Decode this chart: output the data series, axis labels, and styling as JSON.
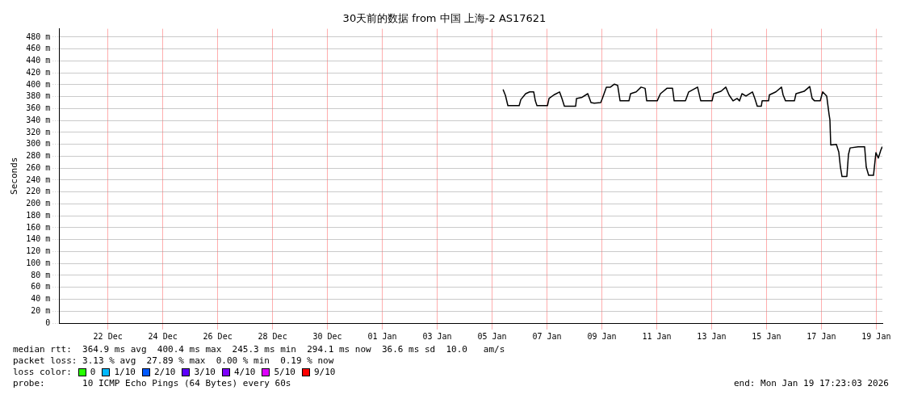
{
  "chart_data": {
    "type": "line",
    "title": "30天前的数据 from 中国 上海-2 AS17621",
    "ylabel": "Seconds",
    "x": [
      "2026-01-05T21:36",
      "2026-01-05T23:43",
      "2026-01-06T01:50",
      "2026-01-06T11:43",
      "2026-01-06T13:08",
      "2026-01-06T17:22",
      "2026-01-06T20:54",
      "2026-01-07T00:26",
      "2026-01-07T01:50",
      "2026-01-07T03:15",
      "2026-01-07T12:26",
      "2026-01-07T13:50",
      "2026-01-07T18:04",
      "2026-01-07T23:01",
      "2026-01-08T01:08",
      "2026-01-08T03:15",
      "2026-01-08T13:08",
      "2026-01-08T13:50",
      "2026-01-08T18:46",
      "2026-01-08T23:43",
      "2026-01-09T02:32",
      "2026-01-09T05:22",
      "2026-01-09T11:01",
      "2026-01-09T12:26",
      "2026-01-09T15:58",
      "2026-01-09T19:29",
      "2026-01-09T23:01",
      "2026-01-10T01:50",
      "2026-01-10T03:57",
      "2026-01-10T11:43",
      "2026-01-10T13:08",
      "2026-01-10T18:04",
      "2026-01-10T22:19",
      "2026-01-11T01:50",
      "2026-01-11T03:15",
      "2026-01-11T12:26",
      "2026-01-11T15:16",
      "2026-01-11T20:54",
      "2026-01-12T01:50",
      "2026-01-12T03:15",
      "2026-01-12T13:08",
      "2026-01-12T15:58",
      "2026-01-12T23:43",
      "2026-01-13T02:32",
      "2026-01-13T12:26",
      "2026-01-13T13:50",
      "2026-01-13T20:12",
      "2026-01-14T00:26",
      "2026-01-14T03:15",
      "2026-01-14T06:46",
      "2026-01-14T10:18",
      "2026-01-14T12:26",
      "2026-01-14T14:33",
      "2026-01-14T18:04",
      "2026-01-14T23:43",
      "2026-01-15T01:50",
      "2026-01-15T03:57",
      "2026-01-15T07:29",
      "2026-01-15T08:12",
      "2026-01-15T13:50",
      "2026-01-15T14:33",
      "2026-01-15T20:12",
      "2026-01-16T01:08",
      "2026-01-16T02:32",
      "2026-01-16T04:39",
      "2026-01-16T12:26",
      "2026-01-16T13:50",
      "2026-01-16T20:54",
      "2026-01-17T01:50",
      "2026-01-17T03:57",
      "2026-01-17T06:04",
      "2026-01-17T11:01",
      "2026-01-17T13:08",
      "2026-01-17T16:40",
      "2026-01-17T18:46",
      "2026-01-17T19:29",
      "2026-01-17T20:12",
      "2026-01-18T01:08",
      "2026-01-18T03:15",
      "2026-01-18T04:39",
      "2026-01-18T06:04",
      "2026-01-18T10:18",
      "2026-01-18T11:43",
      "2026-01-18T13:08",
      "2026-01-18T20:12",
      "2026-01-19T01:50",
      "2026-01-19T03:15",
      "2026-01-19T05:22",
      "2026-01-19T09:36",
      "2026-01-19T11:43",
      "2026-01-19T13:50",
      "2026-01-19T15:58",
      "2026-01-19T17:15"
    ],
    "series": [
      {
        "color": "#000000",
        "values": [
          392,
          382,
          365,
          365,
          375,
          385,
          388,
          388,
          373,
          365,
          365,
          377,
          383,
          388,
          377,
          364,
          364,
          377,
          379,
          385,
          370,
          369,
          370,
          377,
          396,
          396,
          401,
          399,
          373,
          373,
          385,
          388,
          396,
          394,
          373,
          373,
          385,
          394,
          394,
          373,
          373,
          388,
          396,
          373,
          373,
          385,
          389,
          396,
          383,
          373,
          377,
          373,
          385,
          381,
          388,
          377,
          364,
          364,
          373,
          373,
          383,
          388,
          396,
          383,
          373,
          373,
          385,
          389,
          397,
          377,
          373,
          373,
          388,
          381,
          350,
          341,
          299,
          300,
          287,
          262,
          246,
          246,
          283,
          294,
          296,
          296,
          262,
          248,
          248,
          286,
          277,
          290,
          296
        ]
      }
    ],
    "xlim": [
      "2025-12-20T17:23",
      "2026-01-19T17:23"
    ],
    "xticks": [
      {
        "value": "2025-12-22T12:00",
        "label": "22 Dec"
      },
      {
        "value": "2025-12-24T12:00",
        "label": "24 Dec"
      },
      {
        "value": "2025-12-26T12:00",
        "label": "26 Dec"
      },
      {
        "value": "2025-12-28T12:00",
        "label": "28 Dec"
      },
      {
        "value": "2025-12-30T12:00",
        "label": "30 Dec"
      },
      {
        "value": "2026-01-01T12:00",
        "label": "01 Jan"
      },
      {
        "value": "2026-01-03T12:00",
        "label": "03 Jan"
      },
      {
        "value": "2026-01-05T12:00",
        "label": "05 Jan"
      },
      {
        "value": "2026-01-07T12:00",
        "label": "07 Jan"
      },
      {
        "value": "2026-01-09T12:00",
        "label": "09 Jan"
      },
      {
        "value": "2026-01-11T12:00",
        "label": "11 Jan"
      },
      {
        "value": "2026-01-13T12:00",
        "label": "13 Jan"
      },
      {
        "value": "2026-01-15T12:00",
        "label": "15 Jan"
      },
      {
        "value": "2026-01-17T12:00",
        "label": "17 Jan"
      },
      {
        "value": "2026-01-19T12:00",
        "label": "19 Jan"
      }
    ],
    "ylim": [
      0,
      494
    ],
    "yticks": [
      0,
      {
        "value": 20,
        "label": "20 m"
      },
      {
        "value": 40,
        "label": "40 m"
      },
      {
        "value": 60,
        "label": "60 m"
      },
      {
        "value": 80,
        "label": "80 m"
      },
      {
        "value": 100,
        "label": "100 m"
      },
      {
        "value": 120,
        "label": "120 m"
      },
      {
        "value": 140,
        "label": "140 m"
      },
      {
        "value": 160,
        "label": "160 m"
      },
      {
        "value": 180,
        "label": "180 m"
      },
      {
        "value": 200,
        "label": "200 m"
      },
      {
        "value": 220,
        "label": "220 m"
      },
      {
        "value": 240,
        "label": "240 m"
      },
      {
        "value": 260,
        "label": "260 m"
      },
      {
        "value": 280,
        "label": "280 m"
      },
      {
        "value": 300,
        "label": "300 m"
      },
      {
        "value": 320,
        "label": "320 m"
      },
      {
        "value": 340,
        "label": "340 m"
      },
      {
        "value": 360,
        "label": "360 m"
      },
      {
        "value": 380,
        "label": "380 m"
      },
      {
        "value": 400,
        "label": "400 m"
      },
      {
        "value": 420,
        "label": "420 m"
      },
      {
        "value": 440,
        "label": "440 m"
      },
      {
        "value": 460,
        "label": "460 m"
      },
      {
        "value": 480,
        "label": "480 m"
      }
    ],
    "grid": true,
    "marker": "none",
    "line_style": "solid",
    "legend": false,
    "annotations": [
      "median rtt:  364.9 ms avg  400.4 ms max  245.3 ms min  294.1 ms now  36.6 ms sd  10.0   am/s",
      "packet loss: 3.13 % avg  27.89 % max  0.00 % min  0.19 % now",
      "loss color:",
      "0",
      "1/10",
      "2/10",
      "3/10",
      "4/10",
      "5/10",
      "9/10",
      "probe:       10 ICMP Echo Pings (64 Bytes) every 60s",
      "end: Mon Jan 19 17:23:03 2026"
    ]
  }
}
